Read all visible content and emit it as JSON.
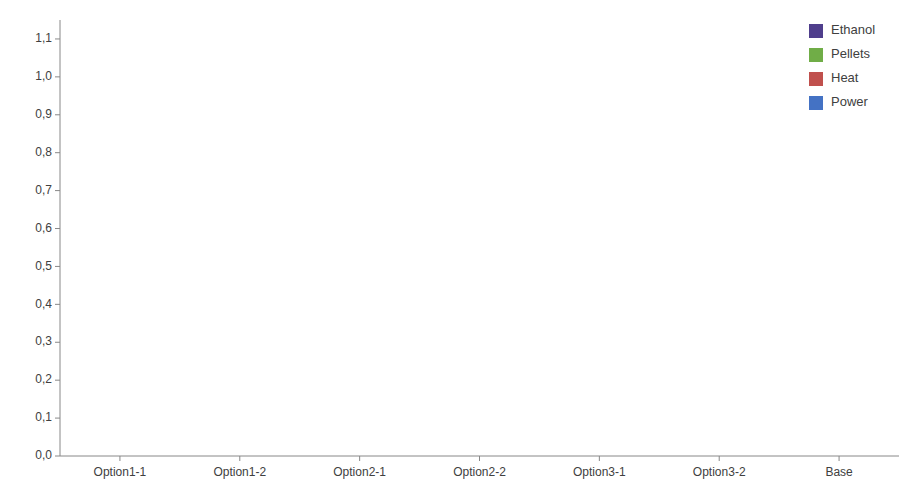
{
  "chart_data": {
    "type": "bar",
    "categories": [
      "Option1-1",
      "Option1-2",
      "Option2-1",
      "Option2-2",
      "Option3-1",
      "Option3-2",
      "Base"
    ],
    "series": [
      {
        "name": "Ethanol",
        "color": "#4F3E8C",
        "values": [
          0.0,
          0.0,
          0.0,
          0.0,
          0.0,
          0.0,
          0.0
        ]
      },
      {
        "name": "Pellets",
        "color": "#70AD47",
        "values": [
          0.0,
          0.0,
          0.0,
          0.0,
          0.0,
          0.0,
          0.0
        ]
      },
      {
        "name": "Heat",
        "color": "#C0504D",
        "values": [
          0.0,
          0.0,
          0.0,
          0.0,
          0.0,
          0.0,
          0.0
        ]
      },
      {
        "name": "Power",
        "color": "#4472C4",
        "values": [
          0.0,
          0.0,
          0.0,
          0.0,
          0.0,
          0.0,
          0.0
        ]
      }
    ],
    "ylim": [
      0.0,
      1.15
    ],
    "yticks": [
      {
        "value": 0.0,
        "label": "0,0"
      },
      {
        "value": 0.1,
        "label": "0,1"
      },
      {
        "value": 0.2,
        "label": "0,2"
      },
      {
        "value": 0.3,
        "label": "0,3"
      },
      {
        "value": 0.4,
        "label": "0,4"
      },
      {
        "value": 0.5,
        "label": "0,5"
      },
      {
        "value": 0.6,
        "label": "0,6"
      },
      {
        "value": 0.7,
        "label": "0,7"
      },
      {
        "value": 0.8,
        "label": "0,8"
      },
      {
        "value": 0.9,
        "label": "0,9"
      },
      {
        "value": 1.0,
        "label": "1,0"
      },
      {
        "value": 1.1,
        "label": "1,1"
      }
    ],
    "grid": false,
    "legend": "upper right"
  }
}
